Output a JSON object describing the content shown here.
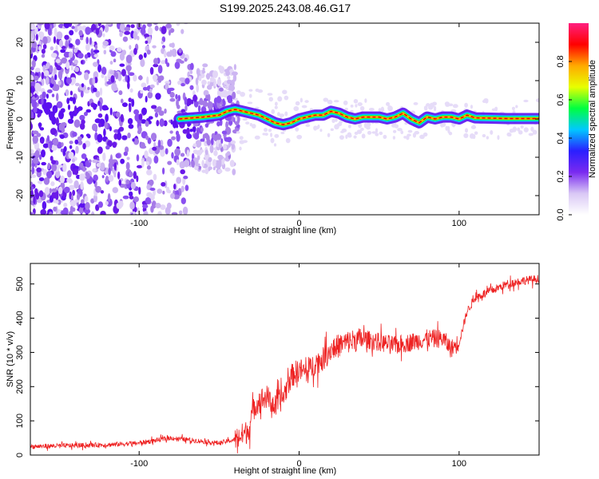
{
  "figure_title": "S199.2025.243.08.46.G17",
  "chart_data": [
    {
      "type": "heatmap",
      "title": "S199.2025.243.08.46.G17",
      "xlabel": "Height of straight line (km)",
      "ylabel": "Frequency (Hz)",
      "xlim": [
        -168,
        150
      ],
      "ylim": [
        -25,
        25
      ],
      "xticks": [
        -100,
        0,
        100
      ],
      "yticks": [
        -20,
        -10,
        0,
        10,
        20
      ],
      "ridge": {
        "description_points_x": [
          -75,
          -60,
          -50,
          -45,
          -40,
          -35,
          -30,
          -25,
          -20,
          -15,
          -10,
          -5,
          0,
          5,
          10,
          15,
          20,
          25,
          30,
          35,
          40,
          45,
          50,
          55,
          60,
          65,
          70,
          75,
          80,
          85,
          90,
          95,
          100,
          105,
          110,
          120,
          130,
          140,
          150
        ],
        "frequency_hz": [
          0,
          0.5,
          1,
          2,
          2.5,
          2,
          1.5,
          1,
          0,
          -1,
          -1.5,
          -1,
          0,
          0.5,
          1,
          1,
          2,
          1.5,
          0.5,
          0,
          0.5,
          0.5,
          0.5,
          0,
          0.5,
          1.5,
          0,
          -1,
          0.5,
          0,
          0.5,
          0.5,
          0,
          1,
          0.3,
          0.2,
          0.1,
          0.1,
          0.1
        ]
      },
      "colorbar": {
        "label": "Normalized spectral amplitude",
        "range": [
          0.0,
          1.0
        ],
        "ticks": [
          "0.0",
          "0.2",
          "0.4",
          "0.6",
          "0.8"
        ],
        "tick_values": [
          0.0,
          0.2,
          0.4,
          0.6,
          0.8
        ],
        "colormap": [
          "#ffffff",
          "#d9c8f5",
          "#7a2af0",
          "#2a1fff",
          "#00c8ff",
          "#00ff40",
          "#e8ff00",
          "#ffaa00",
          "#ff0000",
          "#ff2080"
        ]
      }
    },
    {
      "type": "line",
      "xlabel": "Height of straight line (km)",
      "ylabel": "SNR (10 * v/v)",
      "xlim": [
        -168,
        150
      ],
      "ylim": [
        0,
        560
      ],
      "xticks": [
        -100,
        0,
        100
      ],
      "yticks": [
        0,
        100,
        200,
        300,
        400,
        500
      ],
      "color": "#ee2222",
      "trend": {
        "x": [
          -168,
          -120,
          -100,
          -80,
          -60,
          -50,
          -40,
          -32,
          -28,
          -25,
          -20,
          -15,
          -10,
          -5,
          0,
          5,
          10,
          15,
          20,
          25,
          30,
          40,
          50,
          60,
          70,
          80,
          90,
          95,
          100,
          105,
          110,
          120,
          130,
          140,
          150
        ],
        "y": [
          25,
          30,
          35,
          50,
          40,
          35,
          45,
          70,
          140,
          160,
          170,
          140,
          170,
          230,
          250,
          240,
          270,
          280,
          310,
          320,
          330,
          340,
          330,
          320,
          330,
          340,
          340,
          310,
          330,
          420,
          460,
          480,
          500,
          510,
          515
        ]
      }
    }
  ]
}
